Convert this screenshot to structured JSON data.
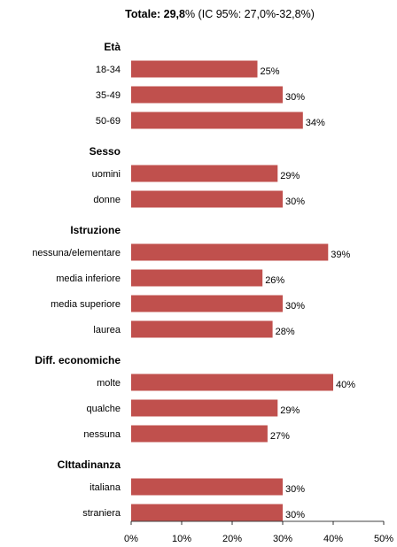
{
  "chart_data": {
    "type": "bar",
    "orientation": "horizontal",
    "title": {
      "bold_part": "Totale: 29,8",
      "rest": "% (IC 95%: 27,0%-32,8%)"
    },
    "bar_color": "#c0504d",
    "xlim": [
      0,
      50
    ],
    "x_ticks": [
      0,
      10,
      20,
      30,
      40,
      50
    ],
    "x_tick_labels": [
      "0%",
      "10%",
      "20%",
      "30%",
      "40%",
      "50%"
    ],
    "grid": false,
    "groups": [
      {
        "name": "Età",
        "categories": [
          "18-34",
          "35-49",
          "50-69"
        ],
        "values": [
          25,
          30,
          34
        ],
        "labels": [
          "25%",
          "30%",
          "34%"
        ]
      },
      {
        "name": "Sesso",
        "categories": [
          "uomini",
          "donne"
        ],
        "values": [
          29,
          30
        ],
        "labels": [
          "29%",
          "30%"
        ]
      },
      {
        "name": "Istruzione",
        "categories": [
          "nessuna/elementare",
          "media inferiore",
          "media superiore",
          "laurea"
        ],
        "values": [
          39,
          26,
          30,
          28
        ],
        "labels": [
          "39%",
          "26%",
          "30%",
          "28%"
        ]
      },
      {
        "name": "Diff. economiche",
        "categories": [
          "molte",
          "qualche",
          "nessuna"
        ],
        "values": [
          40,
          29,
          27
        ],
        "labels": [
          "40%",
          "29%",
          "27%"
        ]
      },
      {
        "name": "CIttadinanza",
        "categories": [
          "italiana",
          "straniera"
        ],
        "values": [
          30,
          30
        ],
        "labels": [
          "30%",
          "30%"
        ]
      }
    ]
  }
}
